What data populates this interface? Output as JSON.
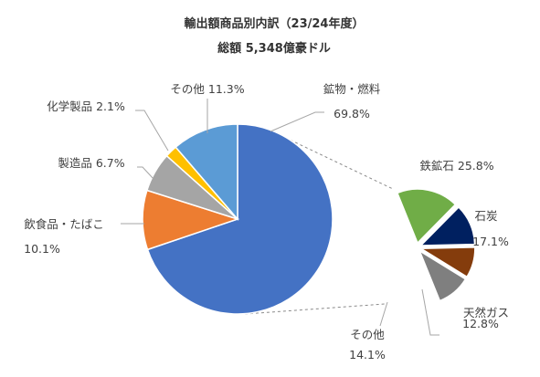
{
  "chart_data": [
    {
      "type": "pie",
      "title": "輸出額商品別内訳（23/24年度）",
      "subtitle": "総額 5,348億豪ドル",
      "categories": [
        "鉱物・燃料",
        "飲食品・たばこ",
        "製造品",
        "化学製品",
        "その他"
      ],
      "values": [
        69.8,
        10.1,
        6.7,
        2.1,
        11.3
      ],
      "labels": [
        {
          "name": "鉱物・燃料",
          "value": "69.8%"
        },
        {
          "name": "飲食品・たばこ",
          "value": "10.1%"
        },
        {
          "name": "製造品",
          "value": "6.7%"
        },
        {
          "name": "化学製品",
          "value": "2.1%"
        },
        {
          "name": "その他",
          "value": "11.3%"
        }
      ],
      "colors": [
        "#4472C4",
        "#ED7D31",
        "#A5A5A5",
        "#FFC000",
        "#5B9BD5"
      ]
    },
    {
      "type": "pie",
      "parent": "鉱物・燃料",
      "categories": [
        "鉄鉱石",
        "石炭",
        "天然ガス",
        "その他"
      ],
      "values": [
        25.8,
        17.1,
        12.8,
        14.1
      ],
      "labels": [
        {
          "name": "鉄鉱石",
          "value": "25.8%"
        },
        {
          "name": "石炭",
          "value": "17.1%"
        },
        {
          "name": "天然ガス",
          "value": "12.8%"
        },
        {
          "name": "その他",
          "value": "14.1%"
        }
      ],
      "colors": [
        "#70AD47",
        "#002060",
        "#843C0C",
        "#7F7F7F"
      ]
    }
  ]
}
